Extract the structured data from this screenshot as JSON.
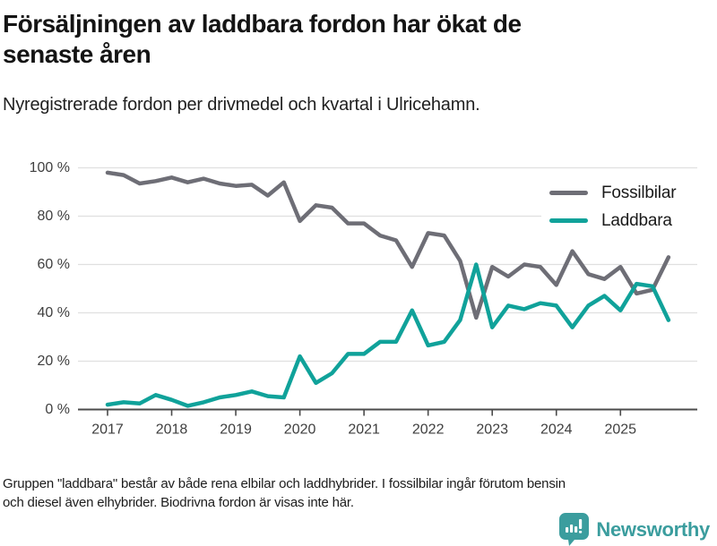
{
  "header": {
    "title": "Försäljningen av laddbara fordon har ökat de\nsenaste åren",
    "subtitle": "Nyregistrerade fordon per drivmedel och kvartal i Ulricehamn."
  },
  "chart_data": {
    "type": "line",
    "title": "Försäljningen av laddbara fordon har ökat de senaste åren",
    "subtitle": "Nyregistrerade fordon per drivmedel och kvartal i Ulricehamn.",
    "unit": "%",
    "ylim": [
      0,
      100
    ],
    "ytick_labels": [
      "100 %",
      "80 %",
      "60 %",
      "40 %",
      "20 %",
      "0 %"
    ],
    "ytick_values": [
      100,
      80,
      60,
      40,
      20,
      0
    ],
    "xtick_labels": [
      "2017",
      "2018",
      "2019",
      "2020",
      "2021",
      "2022",
      "2023",
      "2024",
      "2025"
    ],
    "grid": true,
    "legend_position": "top-right",
    "categories": [
      "2017 Q1",
      "2017 Q2",
      "2017 Q3",
      "2017 Q4",
      "2018 Q1",
      "2018 Q2",
      "2018 Q3",
      "2018 Q4",
      "2019 Q1",
      "2019 Q2",
      "2019 Q3",
      "2019 Q4",
      "2020 Q1",
      "2020 Q2",
      "2020 Q3",
      "2020 Q4",
      "2021 Q1",
      "2021 Q2",
      "2021 Q3",
      "2021 Q4",
      "2022 Q1",
      "2022 Q2",
      "2022 Q3",
      "2022 Q4",
      "2023 Q1",
      "2023 Q2",
      "2023 Q3",
      "2023 Q4",
      "2024 Q1",
      "2024 Q2",
      "2024 Q3",
      "2024 Q4",
      "2025 Q1",
      "2025 Q2",
      "2025 Q3",
      "2025 Q4"
    ],
    "series": [
      {
        "name": "Fossilbilar",
        "color": "#6e6e76",
        "values": [
          98,
          97,
          93.5,
          94.5,
          96,
          94,
          95.5,
          93.5,
          92.5,
          93,
          88.5,
          94,
          78,
          84.5,
          83.5,
          77,
          77,
          72,
          70,
          59,
          73,
          72,
          61.5,
          38,
          59,
          55,
          60,
          59,
          51.5,
          65.5,
          56,
          54,
          59,
          48,
          49.5,
          63
        ]
      },
      {
        "name": "Laddbara",
        "color": "#10a29a",
        "values": [
          2,
          3,
          2.5,
          6,
          4,
          1.5,
          3,
          5,
          6,
          7.5,
          5.5,
          5,
          22,
          11,
          15,
          23,
          23,
          28,
          28,
          41,
          26.5,
          28,
          37,
          60,
          34,
          43,
          41.5,
          44,
          43,
          34,
          43,
          47,
          41,
          52,
          51,
          37
        ]
      }
    ]
  },
  "footer": {
    "note": "Gruppen \"laddbara\" består av både rena elbilar och laddhybrider. I fossilbilar ingår förutom bensin\noch diesel även elhybrider. Biodrivna fordon är visas inte här.",
    "brand": "Newsworthy"
  },
  "colors": {
    "fossil_line": "#6e6e76",
    "laddbara_line": "#10a29a",
    "gridline": "#e0e0e0",
    "axis": "#4b4b4b",
    "tick_label": "#3f3f3f",
    "brand_teal": "#3b9d9e"
  }
}
